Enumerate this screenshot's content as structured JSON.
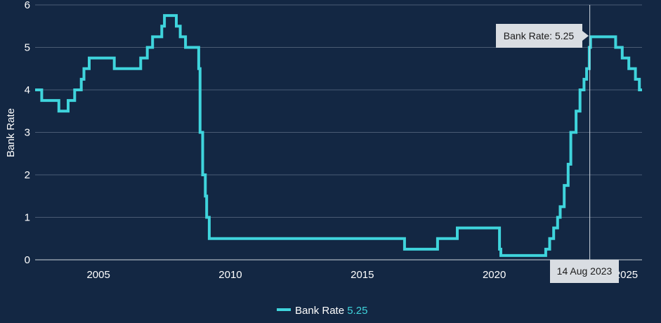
{
  "colors": {
    "background": "#132743",
    "line": "#3fd4dc",
    "grid": "#4a5b74",
    "tooltip_bg": "#d9dde2"
  },
  "chart_data": {
    "type": "line",
    "step": true,
    "ylabel": "Bank Rate",
    "ylim": [
      0,
      6
    ],
    "yticks": [
      0,
      1,
      2,
      3,
      4,
      5,
      6
    ],
    "xlim": [
      2002.6,
      2025.6
    ],
    "xticks": [
      2005,
      2010,
      2015,
      2020,
      2025
    ],
    "grid": true,
    "series": [
      {
        "name": "Bank Rate",
        "points": [
          [
            2002.6,
            4.0
          ],
          [
            2002.85,
            3.75
          ],
          [
            2003.5,
            3.5
          ],
          [
            2003.85,
            3.75
          ],
          [
            2004.1,
            4.0
          ],
          [
            2004.35,
            4.25
          ],
          [
            2004.45,
            4.5
          ],
          [
            2004.65,
            4.75
          ],
          [
            2005.6,
            4.5
          ],
          [
            2006.6,
            4.75
          ],
          [
            2006.85,
            5.0
          ],
          [
            2007.05,
            5.25
          ],
          [
            2007.4,
            5.5
          ],
          [
            2007.5,
            5.75
          ],
          [
            2007.95,
            5.5
          ],
          [
            2008.1,
            5.25
          ],
          [
            2008.3,
            5.0
          ],
          [
            2008.8,
            4.5
          ],
          [
            2008.85,
            3.0
          ],
          [
            2008.95,
            2.0
          ],
          [
            2009.05,
            1.5
          ],
          [
            2009.1,
            1.0
          ],
          [
            2009.2,
            0.5
          ],
          [
            2016.6,
            0.25
          ],
          [
            2017.85,
            0.5
          ],
          [
            2018.6,
            0.75
          ],
          [
            2020.2,
            0.25
          ],
          [
            2020.25,
            0.1
          ],
          [
            2021.95,
            0.25
          ],
          [
            2022.1,
            0.5
          ],
          [
            2022.25,
            0.75
          ],
          [
            2022.4,
            1.0
          ],
          [
            2022.5,
            1.25
          ],
          [
            2022.65,
            1.75
          ],
          [
            2022.8,
            2.25
          ],
          [
            2022.9,
            3.0
          ],
          [
            2023.1,
            3.5
          ],
          [
            2023.25,
            4.0
          ],
          [
            2023.4,
            4.25
          ],
          [
            2023.5,
            4.5
          ],
          [
            2023.6,
            5.0
          ],
          [
            2023.65,
            5.25
          ],
          [
            2024.6,
            5.0
          ],
          [
            2024.85,
            4.75
          ],
          [
            2025.1,
            4.5
          ],
          [
            2025.35,
            4.25
          ],
          [
            2025.5,
            4.0
          ],
          [
            2025.6,
            4.0
          ]
        ]
      }
    ],
    "hover": {
      "x": 2023.62,
      "date_label": "14 Aug 2023",
      "tooltip": "Bank Rate: 5.25"
    },
    "legend": {
      "position": "bottom-center",
      "label": "Bank Rate",
      "value": "5.25"
    }
  }
}
